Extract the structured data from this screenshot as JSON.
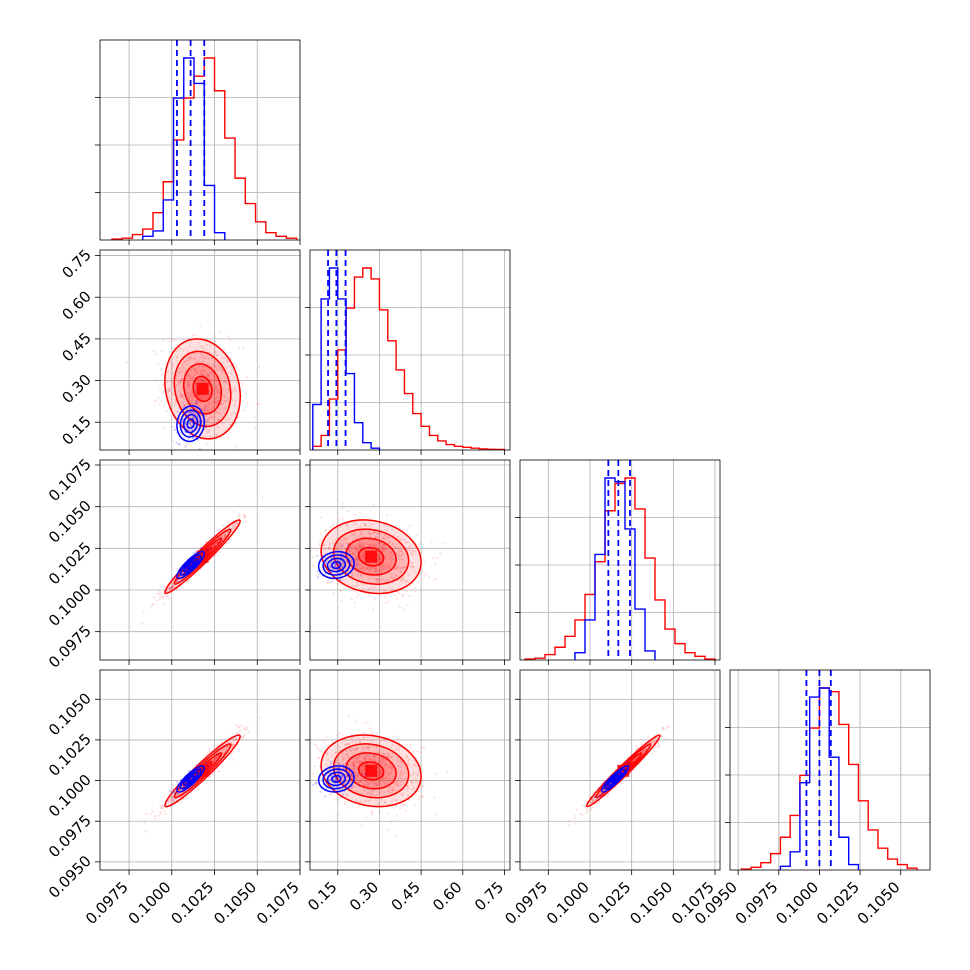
{
  "chart_data": {
    "type": "corner",
    "grid": true,
    "series_colors": {
      "red": "#ff0000",
      "blue": "#0000ff"
    },
    "parameters": [
      {
        "range": [
          0.0958,
          0.1075
        ],
        "ticks": [
          0.0975,
          0.1,
          0.1025,
          0.105,
          0.1075
        ],
        "tick_labels": [
          "0.0975",
          "0.1000",
          "0.1025",
          "0.1050",
          "0.1075"
        ]
      },
      {
        "range": [
          0.05,
          0.77
        ],
        "ticks": [
          0.15,
          0.3,
          0.45,
          0.6,
          0.75
        ],
        "tick_labels": [
          "0.15",
          "0.30",
          "0.45",
          "0.60",
          "0.75"
        ]
      },
      {
        "range": [
          0.0958,
          0.1078
        ],
        "ticks": [
          0.0975,
          0.1,
          0.1025,
          0.105,
          0.1075
        ],
        "tick_labels": [
          "0.0975",
          "0.1000",
          "0.1025",
          "0.1050",
          "0.1075"
        ]
      },
      {
        "range": [
          0.0945,
          0.1068
        ],
        "ticks": [
          0.095,
          0.0975,
          0.1,
          0.1025,
          0.105
        ],
        "tick_labels": [
          "0.0950",
          "0.0975",
          "0.1000",
          "0.1025",
          "0.1050"
        ]
      }
    ],
    "marginals": [
      {
        "red": {
          "x": [
            0.0968,
            0.0974,
            0.098,
            0.0986,
            0.0992,
            0.0998,
            0.1004,
            0.101,
            0.1016,
            0.1022,
            0.1028,
            0.1034,
            0.104,
            0.1046,
            0.1052,
            0.1058,
            0.1064,
            0.107
          ],
          "y": [
            0.005,
            0.01,
            0.03,
            0.06,
            0.15,
            0.32,
            0.55,
            0.78,
            0.9,
            1.0,
            0.82,
            0.56,
            0.34,
            0.2,
            0.1,
            0.04,
            0.02,
            0.01
          ]
        },
        "blue": {
          "x": [
            0.0986,
            0.0992,
            0.0998,
            0.1004,
            0.101,
            0.1016,
            0.1022,
            0.1028
          ],
          "y": [
            0.02,
            0.05,
            0.22,
            0.78,
            1.0,
            0.86,
            0.3,
            0.04
          ]
        },
        "quantiles": [
          0.1003,
          0.1011,
          0.1019
        ]
      },
      {
        "red": {
          "x": [
            0.075,
            0.105,
            0.135,
            0.165,
            0.195,
            0.225,
            0.255,
            0.285,
            0.315,
            0.345,
            0.375,
            0.405,
            0.435,
            0.465,
            0.495,
            0.525,
            0.555,
            0.585,
            0.615,
            0.645,
            0.675,
            0.705,
            0.735
          ],
          "y": [
            0.02,
            0.08,
            0.28,
            0.55,
            0.78,
            0.95,
            1.0,
            0.94,
            0.77,
            0.6,
            0.44,
            0.31,
            0.2,
            0.13,
            0.08,
            0.05,
            0.03,
            0.02,
            0.015,
            0.01,
            0.006,
            0.004,
            0.003
          ]
        },
        "blue": {
          "x": [
            0.075,
            0.105,
            0.135,
            0.165,
            0.195,
            0.225,
            0.255,
            0.285
          ],
          "y": [
            0.25,
            0.83,
            1.0,
            0.83,
            0.42,
            0.15,
            0.04,
            0.01
          ]
        },
        "quantiles": [
          0.115,
          0.145,
          0.178
        ]
      },
      {
        "red": {
          "x": [
            0.0964,
            0.097,
            0.0976,
            0.0982,
            0.0988,
            0.0994,
            0.1,
            0.1006,
            0.1012,
            0.1018,
            0.1024,
            0.103,
            0.1036,
            0.1042,
            0.1048,
            0.1054,
            0.106,
            0.1066,
            0.1072
          ],
          "y": [
            0.005,
            0.01,
            0.03,
            0.07,
            0.13,
            0.22,
            0.36,
            0.54,
            0.82,
            0.97,
            1.0,
            0.83,
            0.56,
            0.33,
            0.17,
            0.09,
            0.04,
            0.02,
            0.005
          ]
        },
        "blue": {
          "x": [
            0.0994,
            0.1,
            0.1006,
            0.1012,
            0.1018,
            0.1024,
            0.103,
            0.1036
          ],
          "y": [
            0.04,
            0.22,
            0.58,
            1.0,
            0.98,
            0.72,
            0.28,
            0.05
          ]
        },
        "quantiles": [
          0.1011,
          0.1017,
          0.1024
        ]
      },
      {
        "red": {
          "x": [
            0.0955,
            0.0961,
            0.0967,
            0.0973,
            0.0979,
            0.0985,
            0.0991,
            0.0997,
            0.1003,
            0.1009,
            0.1015,
            0.1021,
            0.1027,
            0.1033,
            0.1039,
            0.1045,
            0.1051,
            0.1057
          ],
          "y": [
            0.005,
            0.015,
            0.04,
            0.09,
            0.18,
            0.3,
            0.52,
            0.78,
            1.0,
            0.98,
            0.8,
            0.58,
            0.38,
            0.22,
            0.12,
            0.06,
            0.03,
            0.01
          ]
        },
        "blue": {
          "x": [
            0.0979,
            0.0985,
            0.0991,
            0.0997,
            0.1003,
            0.1009,
            0.1015,
            0.1021
          ],
          "y": [
            0.02,
            0.1,
            0.48,
            0.95,
            1.0,
            0.62,
            0.18,
            0.03
          ]
        },
        "quantiles": [
          0.0992,
          0.1,
          0.1007
        ]
      }
    ],
    "joints": {
      "1-0": {
        "red": {
          "mean": [
            0.1018,
            0.27
          ],
          "sd": [
            0.0011,
            0.09
          ],
          "rho": -0.15
        },
        "blue": {
          "mean": [
            0.1011,
            0.145
          ],
          "sd": [
            0.0004,
            0.032
          ],
          "rho": 0.1
        }
      },
      "2-0": {
        "red": {
          "mean": [
            0.1018,
            0.102
          ],
          "sd": [
            0.0011,
            0.0011
          ],
          "rho": 0.97
        },
        "blue": {
          "mean": [
            0.1011,
            0.1015
          ],
          "sd": [
            0.0004,
            0.0004
          ],
          "rho": 0.85
        }
      },
      "2-1": {
        "red": {
          "mean": [
            0.27,
            0.102
          ],
          "sd": [
            0.09,
            0.0011
          ],
          "rho": -0.15
        },
        "blue": {
          "mean": [
            0.145,
            0.1015
          ],
          "sd": [
            0.032,
            0.0004
          ],
          "rho": 0.1
        }
      },
      "3-0": {
        "red": {
          "mean": [
            0.1018,
            0.1006
          ],
          "sd": [
            0.0011,
            0.0011
          ],
          "rho": 0.96
        },
        "blue": {
          "mean": [
            0.1011,
            0.1001
          ],
          "sd": [
            0.0004,
            0.0004
          ],
          "rho": 0.85
        }
      },
      "3-1": {
        "red": {
          "mean": [
            0.27,
            0.1006
          ],
          "sd": [
            0.09,
            0.0011
          ],
          "rho": -0.15
        },
        "blue": {
          "mean": [
            0.145,
            0.1001
          ],
          "sd": [
            0.032,
            0.0004
          ],
          "rho": 0.1
        }
      },
      "3-2": {
        "red": {
          "mean": [
            0.102,
            0.1006
          ],
          "sd": [
            0.0011,
            0.0011
          ],
          "rho": 0.98
        },
        "blue": {
          "mean": [
            0.1015,
            0.1001
          ],
          "sd": [
            0.0004,
            0.0004
          ],
          "rho": 0.9
        }
      }
    },
    "contour_levels_sigma": [
      0.5,
      1.0,
      1.5,
      2.0
    ]
  }
}
